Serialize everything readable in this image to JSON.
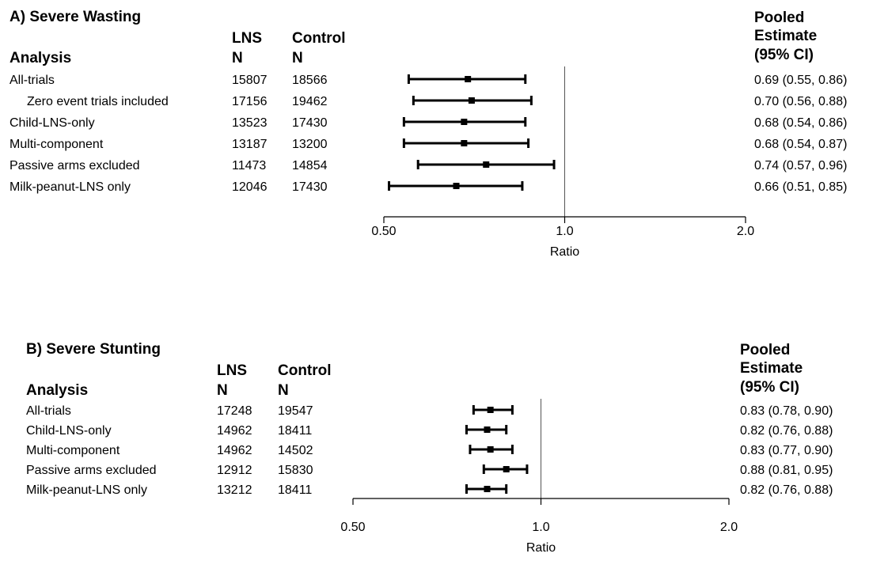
{
  "chart_data": [
    {
      "type": "forest",
      "title": "A) Severe Wasting",
      "headers": {
        "analysis": "Analysis",
        "lns_top": "LNS",
        "lns_bottom": "N",
        "control_top": "Control",
        "control_bottom": "N",
        "estimate_l1": "Pooled",
        "estimate_l2": "Estimate",
        "estimate_l3": "(95% CI)"
      },
      "xlabel": "Ratio",
      "xscale": "log",
      "xlim": [
        0.5,
        2.0
      ],
      "reference": 1.0,
      "ticks": [
        "0.50",
        "1.0",
        "2.0"
      ],
      "rows": [
        {
          "label": "All-trials",
          "indent": false,
          "lns_n": "15807",
          "control_n": "18566",
          "estimate": 0.69,
          "lower": 0.55,
          "upper": 0.86,
          "ci_text": "0.69 (0.55, 0.86)"
        },
        {
          "label": "Zero event trials included",
          "indent": true,
          "lns_n": "17156",
          "control_n": "19462",
          "estimate": 0.7,
          "lower": 0.56,
          "upper": 0.88,
          "ci_text": "0.70 (0.56, 0.88)"
        },
        {
          "label": "Child-LNS-only",
          "indent": false,
          "lns_n": "13523",
          "control_n": "17430",
          "estimate": 0.68,
          "lower": 0.54,
          "upper": 0.86,
          "ci_text": "0.68 (0.54, 0.86)"
        },
        {
          "label": "Multi-component",
          "indent": false,
          "lns_n": "13187",
          "control_n": "13200",
          "estimate": 0.68,
          "lower": 0.54,
          "upper": 0.87,
          "ci_text": "0.68 (0.54, 0.87)"
        },
        {
          "label": "Passive arms excluded",
          "indent": false,
          "lns_n": "11473",
          "control_n": "14854",
          "estimate": 0.74,
          "lower": 0.57,
          "upper": 0.96,
          "ci_text": "0.74 (0.57, 0.96)"
        },
        {
          "label": "Milk-peanut-LNS only",
          "indent": false,
          "lns_n": "12046",
          "control_n": "17430",
          "estimate": 0.66,
          "lower": 0.51,
          "upper": 0.85,
          "ci_text": "0.66 (0.51, 0.85)"
        }
      ]
    },
    {
      "type": "forest",
      "title": "B) Severe Stunting",
      "headers": {
        "analysis": "Analysis",
        "lns_top": "LNS",
        "lns_bottom": "N",
        "control_top": "Control",
        "control_bottom": "N",
        "estimate_l1": "Pooled",
        "estimate_l2": "Estimate",
        "estimate_l3": "(95% CI)"
      },
      "xlabel": "Ratio",
      "xscale": "log",
      "xlim": [
        0.5,
        2.0
      ],
      "reference": 1.0,
      "ticks": [
        "0.50",
        "1.0",
        "2.0"
      ],
      "rows": [
        {
          "label": "All-trials",
          "indent": false,
          "lns_n": "17248",
          "control_n": "19547",
          "estimate": 0.83,
          "lower": 0.78,
          "upper": 0.9,
          "ci_text": "0.83 (0.78, 0.90)"
        },
        {
          "label": "Child-LNS-only",
          "indent": false,
          "lns_n": "14962",
          "control_n": "18411",
          "estimate": 0.82,
          "lower": 0.76,
          "upper": 0.88,
          "ci_text": "0.82 (0.76, 0.88)"
        },
        {
          "label": "Multi-component",
          "indent": false,
          "lns_n": "14962",
          "control_n": "14502",
          "estimate": 0.83,
          "lower": 0.77,
          "upper": 0.9,
          "ci_text": "0.83 (0.77, 0.90)"
        },
        {
          "label": "Passive arms excluded",
          "indent": false,
          "lns_n": "12912",
          "control_n": "15830",
          "estimate": 0.88,
          "lower": 0.81,
          "upper": 0.95,
          "ci_text": "0.88 (0.81, 0.95)"
        },
        {
          "label": "Milk-peanut-LNS only",
          "indent": false,
          "lns_n": "13212",
          "control_n": "18411",
          "estimate": 0.82,
          "lower": 0.76,
          "upper": 0.88,
          "ci_text": "0.82 (0.76, 0.88)"
        }
      ]
    }
  ]
}
